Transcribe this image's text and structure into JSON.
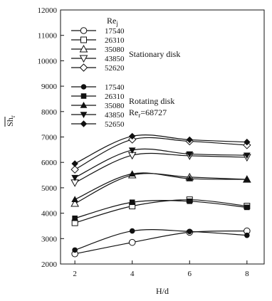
{
  "chart_data": {
    "type": "line",
    "xlabel": "H/d",
    "ylabel": "Sh",
    "ylabel_subscript": "r",
    "x": [
      2,
      4,
      6,
      8
    ],
    "xticks": [
      2,
      4,
      6,
      8
    ],
    "yticks": [
      2000,
      3000,
      4000,
      5000,
      6000,
      7000,
      8000,
      9000,
      10000,
      11000,
      12000
    ],
    "xlim": [
      1.5,
      8.6
    ],
    "ylim": [
      2000,
      12000
    ],
    "grid": false,
    "legend": {
      "placement": "top-left",
      "title": "Re",
      "title_subscript": "j",
      "stationary_label": "Stationary disk",
      "rotating_label": "Rotating disk",
      "rotating_re_label": "Re",
      "rotating_re_subscript": "r",
      "rotating_re_value": "=68727"
    },
    "series": [
      {
        "name": "17540",
        "group": "stationary",
        "marker": "circle-open",
        "values": [
          2400,
          2850,
          3250,
          3300
        ]
      },
      {
        "name": "26310",
        "group": "stationary",
        "marker": "square-open",
        "values": [
          3620,
          4280,
          4530,
          4280
        ]
      },
      {
        "name": "35080",
        "group": "stationary",
        "marker": "triangle-up-open",
        "values": [
          4380,
          5500,
          5420,
          5330
        ]
      },
      {
        "name": "43850",
        "group": "stationary",
        "marker": "triangle-down-open",
        "values": [
          5200,
          6280,
          6260,
          6200
        ]
      },
      {
        "name": "52620",
        "group": "stationary",
        "marker": "diamond-open",
        "values": [
          5720,
          6900,
          6830,
          6680
        ]
      },
      {
        "name": "17540",
        "group": "rotating",
        "marker": "circle-filled",
        "values": [
          2550,
          3300,
          3280,
          3130
        ]
      },
      {
        "name": "26310",
        "group": "rotating",
        "marker": "square-filled",
        "values": [
          3800,
          4430,
          4470,
          4230
        ]
      },
      {
        "name": "35080",
        "group": "rotating",
        "marker": "triangle-up-filled",
        "values": [
          4540,
          5550,
          5360,
          5330
        ]
      },
      {
        "name": "43850",
        "group": "rotating",
        "marker": "triangle-down-filled",
        "values": [
          5400,
          6480,
          6330,
          6280
        ]
      },
      {
        "name": "52650",
        "group": "rotating",
        "marker": "diamond-filled",
        "values": [
          5950,
          7030,
          6890,
          6800
        ]
      }
    ]
  }
}
